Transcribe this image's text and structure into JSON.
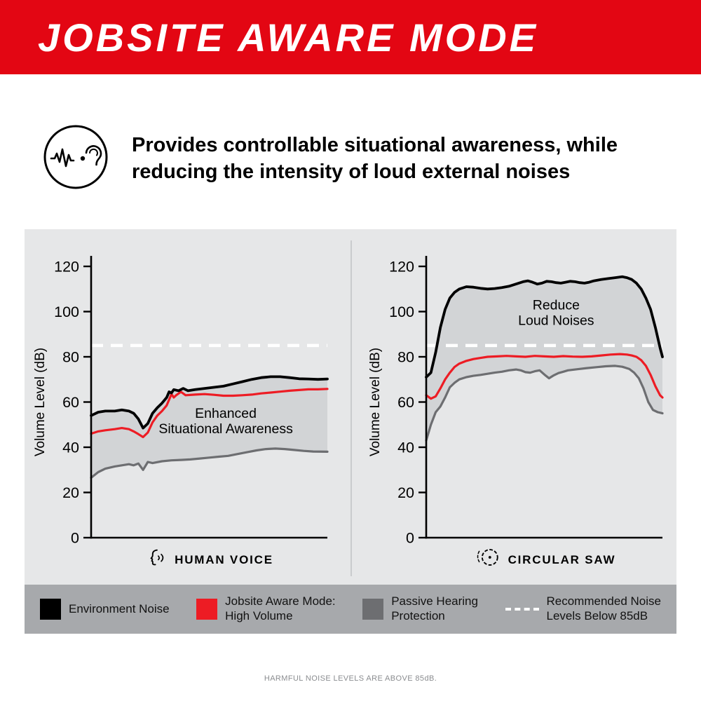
{
  "banner": {
    "title": "JOBSITE AWARE MODE"
  },
  "intro": {
    "text": "Provides controllable situational awareness, while reducing the intensity of loud external noises"
  },
  "colors": {
    "banner": "#E30613",
    "environment": "#000000",
    "aware": "#ED1C24",
    "passive": "#6D6E71",
    "threshold": "#FFFFFF",
    "panel_bg": "#E6E7E8",
    "band": "#D2D4D6",
    "legend_bg": "#A7A9AC"
  },
  "chart_data": [
    {
      "type": "line",
      "title": "HUMAN VOICE",
      "ylabel": "Volume Level (dB)",
      "ylim": [
        0,
        120
      ],
      "yticks": [
        0,
        20,
        40,
        60,
        80,
        100,
        120
      ],
      "grid": false,
      "threshold": {
        "value": 85,
        "label": "Recommended Noise Levels Below 85dB",
        "style": "dashed-white"
      },
      "annotations": [
        {
          "text": "Enhanced\nSituational Awareness",
          "x": 57,
          "y": 53
        }
      ],
      "band": {
        "upper": "Environment Noise",
        "lower": "Passive Hearing Protection"
      },
      "series": [
        {
          "name": "Environment Noise",
          "color": "#000000",
          "points": [
            [
              0,
              54
            ],
            [
              3,
              55.5
            ],
            [
              6,
              56
            ],
            [
              10,
              56
            ],
            [
              13,
              56.5
            ],
            [
              16,
              56
            ],
            [
              18,
              55
            ],
            [
              20,
              52.5
            ],
            [
              22,
              48.5
            ],
            [
              24,
              50.5
            ],
            [
              26,
              55
            ],
            [
              28,
              57.5
            ],
            [
              30,
              59.5
            ],
            [
              32,
              62
            ],
            [
              33,
              64.5
            ],
            [
              34,
              64
            ],
            [
              35,
              65.5
            ],
            [
              37,
              65
            ],
            [
              39,
              66
            ],
            [
              41,
              65
            ],
            [
              44,
              65.5
            ],
            [
              48,
              66
            ],
            [
              52,
              66.5
            ],
            [
              56,
              67
            ],
            [
              60,
              68
            ],
            [
              64,
              69
            ],
            [
              68,
              70
            ],
            [
              72,
              70.8
            ],
            [
              76,
              71.2
            ],
            [
              80,
              71.2
            ],
            [
              84,
              70.8
            ],
            [
              88,
              70.3
            ],
            [
              92,
              70.2
            ],
            [
              96,
              70
            ],
            [
              100,
              70.2
            ]
          ]
        },
        {
          "name": "Jobsite Aware Mode: High Volume",
          "color": "#ED1C24",
          "points": [
            [
              0,
              46
            ],
            [
              3,
              47
            ],
            [
              6,
              47.5
            ],
            [
              10,
              48
            ],
            [
              13,
              48.5
            ],
            [
              16,
              48
            ],
            [
              18,
              47
            ],
            [
              20,
              45.8
            ],
            [
              22,
              44.5
            ],
            [
              24,
              46.5
            ],
            [
              26,
              51
            ],
            [
              28,
              54
            ],
            [
              30,
              56
            ],
            [
              32,
              58.5
            ],
            [
              33,
              61
            ],
            [
              34,
              63.5
            ],
            [
              35,
              62
            ],
            [
              36,
              63
            ],
            [
              38,
              64.5
            ],
            [
              40,
              63
            ],
            [
              44,
              63.3
            ],
            [
              48,
              63.5
            ],
            [
              52,
              63.2
            ],
            [
              56,
              62.8
            ],
            [
              60,
              62.8
            ],
            [
              64,
              63
            ],
            [
              68,
              63.3
            ],
            [
              72,
              63.8
            ],
            [
              76,
              64.2
            ],
            [
              80,
              64.6
            ],
            [
              84,
              65
            ],
            [
              88,
              65.3
            ],
            [
              92,
              65.6
            ],
            [
              96,
              65.6
            ],
            [
              100,
              65.8
            ]
          ]
        },
        {
          "name": "Passive Hearing Protection",
          "color": "#6D6E71",
          "points": [
            [
              0,
              26.5
            ],
            [
              3,
              29
            ],
            [
              6,
              30.5
            ],
            [
              10,
              31.5
            ],
            [
              13,
              32
            ],
            [
              16,
              32.5
            ],
            [
              18,
              32
            ],
            [
              20,
              32.8
            ],
            [
              22,
              30
            ],
            [
              24,
              33.5
            ],
            [
              26,
              33
            ],
            [
              30,
              33.8
            ],
            [
              34,
              34.2
            ],
            [
              38,
              34.4
            ],
            [
              42,
              34.6
            ],
            [
              46,
              35
            ],
            [
              50,
              35.4
            ],
            [
              54,
              35.8
            ],
            [
              58,
              36.2
            ],
            [
              62,
              37
            ],
            [
              66,
              37.8
            ],
            [
              70,
              38.6
            ],
            [
              74,
              39.2
            ],
            [
              78,
              39.4
            ],
            [
              82,
              39.2
            ],
            [
              86,
              38.8
            ],
            [
              90,
              38.4
            ],
            [
              94,
              38.1
            ],
            [
              100,
              38
            ]
          ]
        }
      ]
    },
    {
      "type": "line",
      "title": "CIRCULAR SAW",
      "ylabel": "Volume Level (dB)",
      "ylim": [
        0,
        120
      ],
      "yticks": [
        0,
        20,
        40,
        60,
        80,
        100,
        120
      ],
      "grid": false,
      "threshold": {
        "value": 85,
        "label": "Recommended Noise Levels Below 85dB",
        "style": "dashed-white"
      },
      "annotations": [
        {
          "text": "Reduce\nLoud Noises",
          "x": 55,
          "y": 101
        }
      ],
      "band": {
        "upper": "Environment Noise",
        "lower": "Passive Hearing Protection"
      },
      "series": [
        {
          "name": "Environment Noise",
          "color": "#000000",
          "points": [
            [
              0,
              71
            ],
            [
              2,
              73
            ],
            [
              4,
              82
            ],
            [
              6,
              93
            ],
            [
              8,
              101
            ],
            [
              10,
              106
            ],
            [
              12,
              108.5
            ],
            [
              14,
              110
            ],
            [
              17,
              111
            ],
            [
              20,
              110.8
            ],
            [
              23,
              110.3
            ],
            [
              26,
              110
            ],
            [
              29,
              110.2
            ],
            [
              32,
              110.6
            ],
            [
              35,
              111.2
            ],
            [
              38,
              112.2
            ],
            [
              41,
              113.2
            ],
            [
              43,
              113.6
            ],
            [
              45,
              113
            ],
            [
              47,
              112.2
            ],
            [
              49,
              112.6
            ],
            [
              51,
              113.4
            ],
            [
              53,
              113.2
            ],
            [
              55,
              112.8
            ],
            [
              57,
              112.6
            ],
            [
              59,
              113
            ],
            [
              61,
              113.4
            ],
            [
              63,
              113.2
            ],
            [
              65,
              112.8
            ],
            [
              67,
              112.6
            ],
            [
              69,
              113
            ],
            [
              71,
              113.6
            ],
            [
              74,
              114.2
            ],
            [
              77,
              114.6
            ],
            [
              80,
              115
            ],
            [
              83,
              115.4
            ],
            [
              85,
              115
            ],
            [
              87,
              114.2
            ],
            [
              89,
              112.6
            ],
            [
              91,
              110
            ],
            [
              93,
              106
            ],
            [
              95,
              101
            ],
            [
              97,
              93
            ],
            [
              99,
              84
            ],
            [
              100,
              80
            ]
          ]
        },
        {
          "name": "Jobsite Aware Mode: High Volume",
          "color": "#ED1C24",
          "points": [
            [
              0,
              63
            ],
            [
              2,
              61.5
            ],
            [
              4,
              62.5
            ],
            [
              6,
              66
            ],
            [
              8,
              70
            ],
            [
              10,
              73
            ],
            [
              12,
              75.5
            ],
            [
              14,
              77
            ],
            [
              17,
              78.2
            ],
            [
              20,
              79
            ],
            [
              23,
              79.5
            ],
            [
              26,
              80
            ],
            [
              30,
              80.2
            ],
            [
              34,
              80.4
            ],
            [
              38,
              80.2
            ],
            [
              42,
              80
            ],
            [
              46,
              80.4
            ],
            [
              50,
              80.2
            ],
            [
              54,
              80
            ],
            [
              58,
              80.3
            ],
            [
              62,
              80.1
            ],
            [
              66,
              80
            ],
            [
              70,
              80.2
            ],
            [
              74,
              80.6
            ],
            [
              78,
              81
            ],
            [
              82,
              81.2
            ],
            [
              85,
              81
            ],
            [
              87,
              80.6
            ],
            [
              89,
              80
            ],
            [
              91,
              78.5
            ],
            [
              93,
              76
            ],
            [
              95,
              72
            ],
            [
              97,
              67
            ],
            [
              99,
              63
            ],
            [
              100,
              62
            ]
          ]
        },
        {
          "name": "Passive Hearing Protection",
          "color": "#6D6E71",
          "points": [
            [
              0,
              43
            ],
            [
              2,
              50
            ],
            [
              4,
              55.5
            ],
            [
              6,
              58
            ],
            [
              8,
              62
            ],
            [
              10,
              66.5
            ],
            [
              12,
              68.5
            ],
            [
              14,
              70
            ],
            [
              17,
              71
            ],
            [
              20,
              71.6
            ],
            [
              23,
              72
            ],
            [
              26,
              72.5
            ],
            [
              29,
              73
            ],
            [
              32,
              73.4
            ],
            [
              35,
              74
            ],
            [
              38,
              74.4
            ],
            [
              40,
              74
            ],
            [
              42,
              73.2
            ],
            [
              44,
              73
            ],
            [
              46,
              73.6
            ],
            [
              48,
              74
            ],
            [
              50,
              72.2
            ],
            [
              52,
              70.5
            ],
            [
              54,
              71.8
            ],
            [
              56,
              72.8
            ],
            [
              58,
              73.4
            ],
            [
              60,
              74
            ],
            [
              64,
              74.5
            ],
            [
              68,
              75
            ],
            [
              72,
              75.4
            ],
            [
              76,
              75.8
            ],
            [
              80,
              76
            ],
            [
              83,
              75.6
            ],
            [
              86,
              74.6
            ],
            [
              88,
              73
            ],
            [
              90,
              70.5
            ],
            [
              92,
              66
            ],
            [
              94,
              60
            ],
            [
              96,
              56.5
            ],
            [
              98,
              55.5
            ],
            [
              100,
              55
            ]
          ]
        }
      ]
    }
  ],
  "legend": {
    "items": [
      {
        "swatch": "environment",
        "label": "Environment Noise"
      },
      {
        "swatch": "aware",
        "label": "Jobsite Aware Mode:\nHigh Volume"
      },
      {
        "swatch": "passive",
        "label": "Passive Hearing\nProtection"
      },
      {
        "swatch": "dashed",
        "label": "Recommended Noise\nLevels Below 85dB"
      }
    ]
  },
  "footer": {
    "text": "HARMFUL NOISE LEVELS ARE ABOVE 85dB."
  }
}
